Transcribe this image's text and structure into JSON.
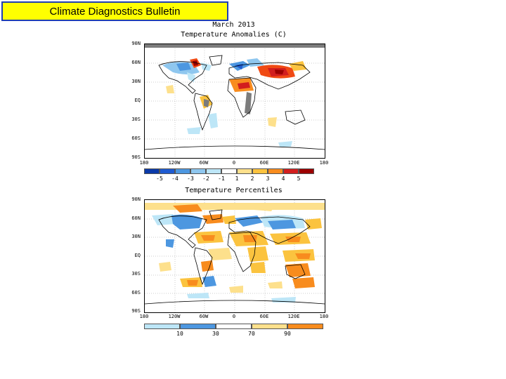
{
  "banner": {
    "title": "Climate Diagnostics Bulletin"
  },
  "figure": {
    "month": "March 2013",
    "colors": {
      "deep_red": "#9c0000",
      "red": "#d21e1e",
      "orange_red": "#f04a14",
      "orange": "#f88c1e",
      "light_orange": "#fbc33f",
      "pale_yellow": "#fde08c",
      "light_blue": "#bde6f7",
      "sky_blue": "#8fc7ef",
      "mid_blue": "#4d97e0",
      "blue": "#1f5bd1",
      "dark_blue": "#0b3aa8",
      "gray": "#7c7c7c"
    }
  },
  "anomaly_map": {
    "title": "Temperature Anomalies (C)",
    "lat_labels": [
      "90N",
      "60N",
      "30N",
      "EQ",
      "30S",
      "60S",
      "90S"
    ],
    "lon_labels": [
      "180",
      "120W",
      "60W",
      "0",
      "60E",
      "120E",
      "180"
    ],
    "colorbar_labels": [
      "-5",
      "-4",
      "-3",
      "-2",
      "-1",
      "1",
      "2",
      "3",
      "4",
      "5"
    ]
  },
  "percentile_map": {
    "title": "Temperature Percentiles",
    "lat_labels": [
      "90N",
      "60N",
      "30N",
      "EQ",
      "30S",
      "60S",
      "90S"
    ],
    "lon_labels": [
      "180",
      "120W",
      "60W",
      "0",
      "60E",
      "120E",
      "180"
    ],
    "colorbar_labels": [
      "10",
      "30",
      "70",
      "90"
    ]
  }
}
